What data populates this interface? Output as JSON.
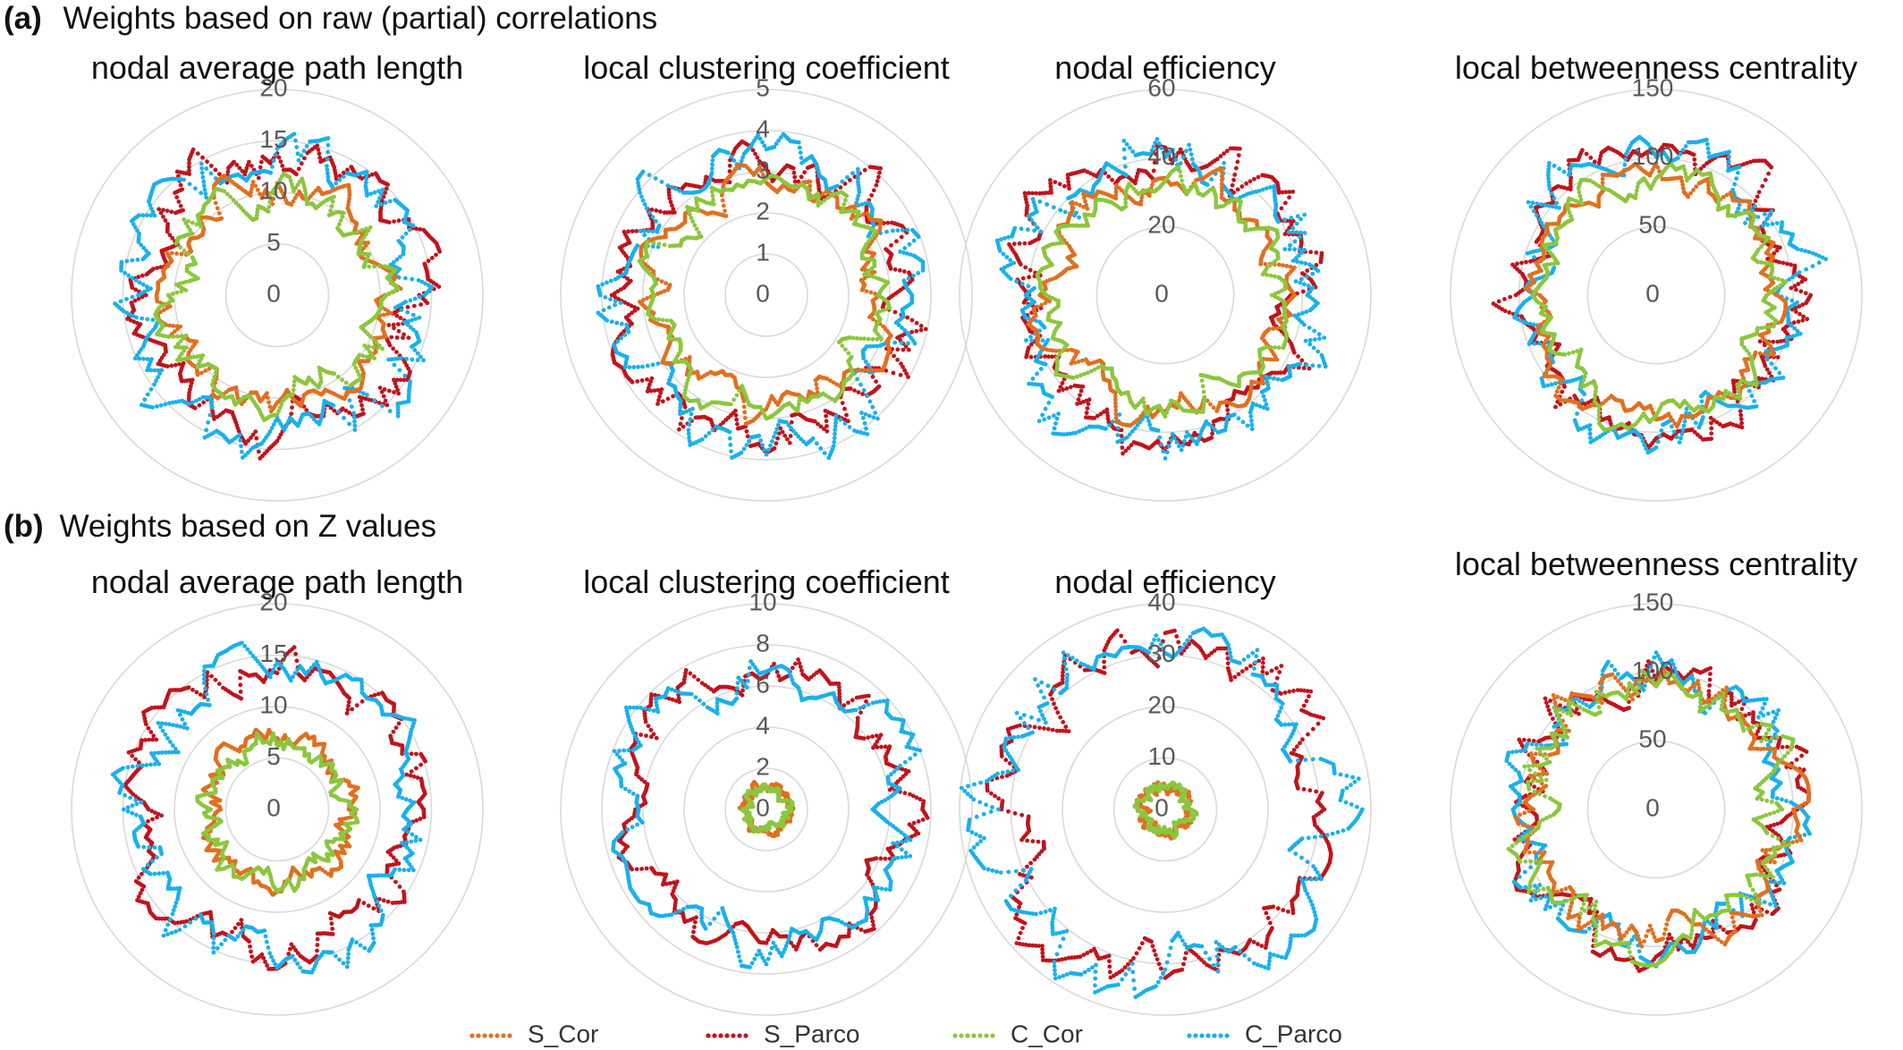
{
  "panels": [
    {
      "label": "(a)",
      "title": "Weights based on raw (partial) correlations"
    },
    {
      "label": "(b)",
      "title": "Weights based on Z values"
    }
  ],
  "colors": {
    "S_Cor": "#e07020",
    "S_Parco": "#c0141c",
    "C_Cor": "#8cc63e",
    "C_Parco": "#1ab0ec",
    "grid": "#d9d9d9"
  },
  "legend": [
    "S_Cor",
    "S_Parco",
    "C_Cor",
    "C_Parco"
  ],
  "chart_data": [
    {
      "type": "radar",
      "panel": "(a)",
      "title": "nodal average path length",
      "rmax": 20,
      "ticks": [
        0,
        5,
        10,
        15,
        20
      ],
      "grid": true,
      "series": [
        {
          "name": "S_Cor",
          "level": 10.5,
          "amp": 1.4,
          "seed": 11
        },
        {
          "name": "S_Parco",
          "level": 13.4,
          "amp": 2.0,
          "seed": 12
        },
        {
          "name": "C_Cor",
          "level": 10.2,
          "amp": 1.5,
          "seed": 13
        },
        {
          "name": "C_Parco",
          "level": 13.6,
          "amp": 2.2,
          "seed": 14
        }
      ]
    },
    {
      "type": "radar",
      "panel": "(a)",
      "title": "local clustering coefficient",
      "rmax": 5,
      "ticks": [
        0,
        1,
        2,
        3,
        4,
        5
      ],
      "grid": true,
      "series": [
        {
          "name": "S_Cor",
          "level": 2.75,
          "amp": 0.35,
          "seed": 21
        },
        {
          "name": "S_Parco",
          "level": 3.45,
          "amp": 0.5,
          "seed": 22
        },
        {
          "name": "C_Cor",
          "level": 2.7,
          "amp": 0.35,
          "seed": 23
        },
        {
          "name": "C_Parco",
          "level": 3.5,
          "amp": 0.55,
          "seed": 24
        }
      ]
    },
    {
      "type": "radar",
      "panel": "(a)",
      "title": "nodal efficiency",
      "rmax": 60,
      "ticks": [
        0,
        20,
        40,
        60
      ],
      "grid": true,
      "series": [
        {
          "name": "S_Cor",
          "level": 34,
          "amp": 4,
          "seed": 31
        },
        {
          "name": "S_Parco",
          "level": 42,
          "amp": 6,
          "seed": 32
        },
        {
          "name": "C_Cor",
          "level": 33,
          "amp": 4,
          "seed": 33
        },
        {
          "name": "C_Parco",
          "level": 43,
          "amp": 6.5,
          "seed": 34
        }
      ]
    },
    {
      "type": "radar",
      "panel": "(a)",
      "title": "local betweenness centrality",
      "rmax": 150,
      "ticks": [
        0,
        50,
        100,
        150
      ],
      "grid": true,
      "series": [
        {
          "name": "S_Cor",
          "level": 88,
          "amp": 10,
          "seed": 41
        },
        {
          "name": "S_Parco",
          "level": 100,
          "amp": 14,
          "seed": 42
        },
        {
          "name": "C_Cor",
          "level": 86,
          "amp": 10,
          "seed": 43
        },
        {
          "name": "C_Parco",
          "level": 101,
          "amp": 15,
          "seed": 44
        }
      ]
    },
    {
      "type": "radar",
      "panel": "(b)",
      "title": "nodal average path length",
      "rmax": 20,
      "ticks": [
        0,
        5,
        10,
        15,
        20
      ],
      "grid": true,
      "series": [
        {
          "name": "S_Cor",
          "level": 6.9,
          "amp": 1.0,
          "seed": 51
        },
        {
          "name": "S_Parco",
          "level": 13.5,
          "amp": 1.8,
          "seed": 52
        },
        {
          "name": "C_Cor",
          "level": 6.7,
          "amp": 1.0,
          "seed": 53
        },
        {
          "name": "C_Parco",
          "level": 13.6,
          "amp": 2.0,
          "seed": 54
        }
      ]
    },
    {
      "type": "radar",
      "panel": "(b)",
      "title": "local clustering coefficient",
      "rmax": 10,
      "ticks": [
        0,
        2,
        4,
        6,
        8,
        10
      ],
      "grid": true,
      "series": [
        {
          "name": "S_Cor",
          "level": 1.1,
          "amp": 0.2,
          "seed": 61
        },
        {
          "name": "S_Parco",
          "level": 6.7,
          "amp": 0.8,
          "seed": 62
        },
        {
          "name": "C_Cor",
          "level": 1.0,
          "amp": 0.2,
          "seed": 63
        },
        {
          "name": "C_Parco",
          "level": 6.8,
          "amp": 0.9,
          "seed": 64
        }
      ]
    },
    {
      "type": "radar",
      "panel": "(b)",
      "title": "nodal efficiency",
      "rmax": 40,
      "ticks": [
        0,
        10,
        20,
        30,
        40
      ],
      "grid": true,
      "series": [
        {
          "name": "S_Cor",
          "level": 4.6,
          "amp": 1.0,
          "seed": 71
        },
        {
          "name": "S_Parco",
          "level": 31,
          "amp": 4,
          "seed": 72
        },
        {
          "name": "C_Cor",
          "level": 4.4,
          "amp": 1.0,
          "seed": 73
        },
        {
          "name": "C_Parco",
          "level": 32,
          "amp": 5,
          "seed": 74
        }
      ]
    },
    {
      "type": "radar",
      "panel": "(b)",
      "title": "local betweenness centrality",
      "rmax": 150,
      "ticks": [
        0,
        50,
        100,
        150
      ],
      "grid": true,
      "series": [
        {
          "name": "S_Cor",
          "level": 95,
          "amp": 12,
          "seed": 81
        },
        {
          "name": "S_Parco",
          "level": 98,
          "amp": 13,
          "seed": 82
        },
        {
          "name": "C_Cor",
          "level": 94,
          "amp": 14,
          "seed": 83
        },
        {
          "name": "C_Parco",
          "level": 99,
          "amp": 14,
          "seed": 84
        }
      ]
    }
  ]
}
